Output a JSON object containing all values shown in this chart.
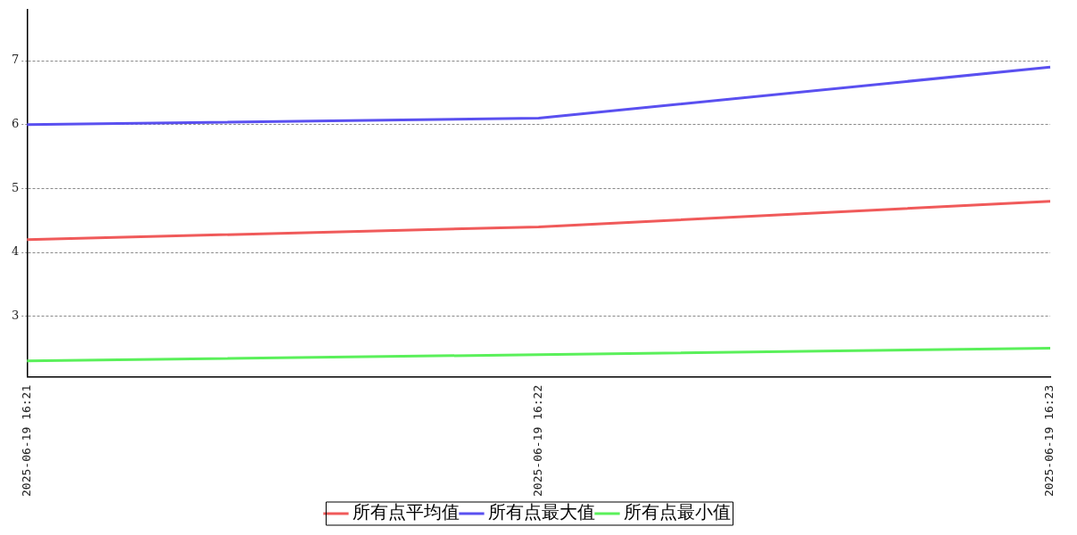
{
  "chart_data": {
    "type": "line",
    "categories": [
      "2025-06-19 16:21",
      "2025-06-19 16:22",
      "2025-06-19 16:23"
    ],
    "series": [
      {
        "name": "所有点平均值",
        "color": "#f05a5a",
        "values": [
          4.2,
          4.4,
          4.8
        ]
      },
      {
        "name": "所有点最大值",
        "color": "#5a50f0",
        "values": [
          6.0,
          6.1,
          6.9
        ]
      },
      {
        "name": "所有点最小值",
        "color": "#5af05a",
        "values": [
          2.3,
          2.4,
          2.5
        ]
      }
    ],
    "ylim": [
      2.05,
      7.8
    ],
    "yticks": [
      3,
      4,
      5,
      6,
      7
    ],
    "grid": "y",
    "legend": "bottom",
    "marker": "none",
    "line_style": "solid"
  }
}
